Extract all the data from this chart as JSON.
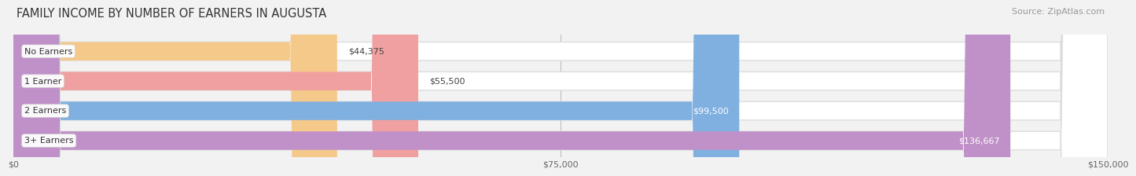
{
  "title": "FAMILY INCOME BY NUMBER OF EARNERS IN AUGUSTA",
  "source": "Source: ZipAtlas.com",
  "categories": [
    "No Earners",
    "1 Earner",
    "2 Earners",
    "3+ Earners"
  ],
  "values": [
    44375,
    55500,
    99500,
    136667
  ],
  "bar_colors": [
    "#f5c98a",
    "#f0a0a0",
    "#80b0e0",
    "#c090c8"
  ],
  "label_colors": [
    "#555555",
    "#555555",
    "#ffffff",
    "#ffffff"
  ],
  "background_color": "#f2f2f2",
  "bar_bg_color": "#ffffff",
  "bar_border_color": "#dddddd",
  "xlim": [
    0,
    150000
  ],
  "xticks": [
    0,
    75000,
    150000
  ],
  "xtick_labels": [
    "$0",
    "$75,000",
    "$150,000"
  ],
  "value_labels": [
    "$44,375",
    "$55,500",
    "$99,500",
    "$136,667"
  ],
  "title_fontsize": 10.5,
  "source_fontsize": 8,
  "bar_height": 0.62,
  "bar_label_fontsize": 8,
  "category_fontsize": 8,
  "tick_fontsize": 8
}
